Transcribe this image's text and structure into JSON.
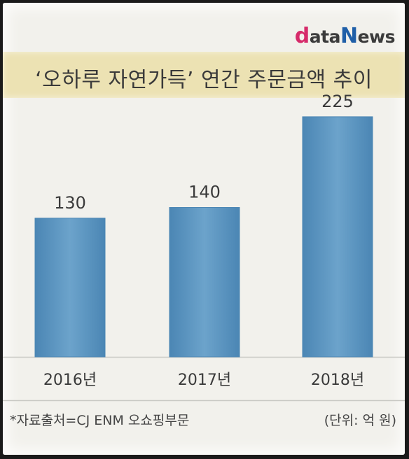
{
  "logo": {
    "part1": "d",
    "part2": "ata",
    "part3": "N",
    "part4": "ews"
  },
  "title": "‘오하루 자연가득’ 연간 주문금액 추이",
  "source": "*자료출처=CJ ENM 오쇼핑부문",
  "unit": "(단위: 억 원)",
  "colors": {
    "bar": "#6ca3cb",
    "bar_edge": "#4b86b4",
    "title_band": "#ece2b3",
    "background": "#f2f1ec"
  },
  "chart_data": {
    "type": "bar",
    "title": "‘오하루 자연가득’ 연간 주문금액 추이",
    "categories": [
      "2016년",
      "2017년",
      "2018년"
    ],
    "values": [
      130,
      140,
      225
    ],
    "data_labels": [
      "130",
      "140",
      "225"
    ],
    "ylim": [
      0,
      240
    ],
    "grid": false,
    "legend": "none"
  }
}
